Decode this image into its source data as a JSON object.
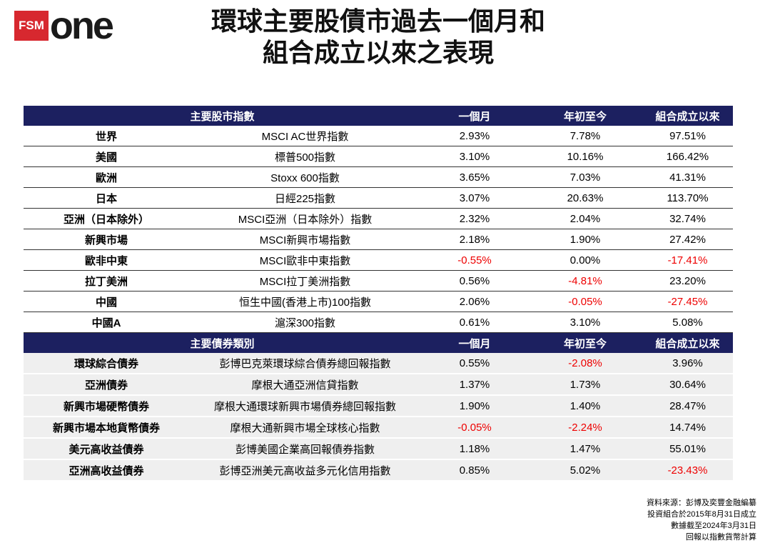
{
  "logo": {
    "brand": "FSM",
    "name": "one"
  },
  "title": [
    "環球主要股債市過去一個月和",
    "組合成立以來之表現"
  ],
  "table": {
    "sections": [
      {
        "header": [
          "主要股市指數",
          "一個月",
          "年初至今",
          "組合成立以來"
        ],
        "rows": [
          [
            "世界",
            "MSCI AC世界指數",
            "2.93%",
            "7.78%",
            "97.51%"
          ],
          [
            "美國",
            "標普500指數",
            "3.10%",
            "10.16%",
            "166.42%"
          ],
          [
            "歐洲",
            "Stoxx 600指數",
            "3.65%",
            "7.03%",
            "41.31%"
          ],
          [
            "日本",
            "日經225指數",
            "3.07%",
            "20.63%",
            "113.70%"
          ],
          [
            "亞洲（日本除外）",
            "MSCI亞洲（日本除外）指數",
            "2.32%",
            "2.04%",
            "32.74%"
          ],
          [
            "新興市場",
            "MSCI新興市場指數",
            "2.18%",
            "1.90%",
            "27.42%"
          ],
          [
            "歐非中東",
            "MSCI歐非中東指數",
            "-0.55%",
            "0.00%",
            "-17.41%"
          ],
          [
            "拉丁美洲",
            "MSCI拉丁美洲指數",
            "0.56%",
            "-4.81%",
            "23.20%"
          ],
          [
            "中國",
            "恒生中國(香港上市)100指數",
            "2.06%",
            "-0.05%",
            "-27.45%"
          ],
          [
            "中國A",
            "滬深300指數",
            "0.61%",
            "3.10%",
            "5.08%"
          ]
        ]
      },
      {
        "header": [
          "主要債券類別",
          "一個月",
          "年初至今",
          "組合成立以來"
        ],
        "rows": [
          [
            "環球綜合債券",
            "彭博巴克萊環球綜合債券總回報指數",
            "0.55%",
            "-2.08%",
            "3.96%"
          ],
          [
            "亞洲債券",
            "摩根大通亞洲信貸指數",
            "1.37%",
            "1.73%",
            "30.64%"
          ],
          [
            "新興市場硬幣債券",
            "摩根大通環球新興市場債券總回報指數",
            "1.90%",
            "1.40%",
            "28.47%"
          ],
          [
            "新興市場本地貨幣債券",
            "摩根大通新興市場全球核心指數",
            "-0.05%",
            "-2.24%",
            "14.74%"
          ],
          [
            "美元高收益債券",
            "彭博美國企業高回報債券指數",
            "1.18%",
            "1.47%",
            "55.01%"
          ],
          [
            "亞洲高收益債券",
            "彭博亞洲美元高收益多元化信用指數",
            "0.85%",
            "5.02%",
            "-23.43%"
          ]
        ]
      }
    ]
  },
  "notes": [
    "資料來源：彭博及奕豐金融編纂",
    "投資組合於2015年8月31日成立",
    "數據截至2024年3月31日",
    "回報以指數貨幣計算"
  ]
}
